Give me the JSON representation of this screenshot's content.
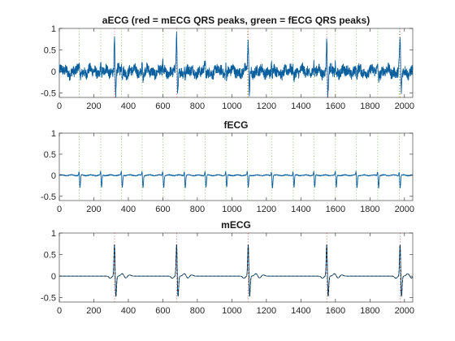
{
  "figure": {
    "background": "#ffffff"
  },
  "chart_data": [
    {
      "type": "line",
      "title": "aECG (red = mECG QRS peaks, green = fECG QRS peaks)",
      "xlim": [
        0,
        2048
      ],
      "ylim": [
        -0.6,
        1
      ],
      "xticks": [
        0,
        200,
        400,
        600,
        800,
        1000,
        1200,
        1400,
        1600,
        1800,
        2000
      ],
      "yticks": [
        -0.5,
        0,
        0.5,
        1
      ],
      "ytick_labels": [
        "-0.5",
        "0",
        "0.5",
        "1"
      ],
      "grid": false,
      "line_color": "#0a5f9e",
      "mecg_peaks": [
        320,
        680,
        1095,
        1550,
        1975
      ],
      "mecg_peak_color": "#d9534f",
      "fecg_peaks": [
        115,
        240,
        360,
        480,
        600,
        725,
        845,
        965,
        1090,
        1230,
        1355,
        1475,
        1600,
        1720,
        1845,
        1970
      ],
      "fecg_peak_color": "#7ab648",
      "noise_amplitude": 0.12,
      "mecg_peak_amplitude": 0.85,
      "fecg_peak_amplitude": 0.18
    },
    {
      "type": "line",
      "title": "fECG",
      "xlim": [
        0,
        2048
      ],
      "ylim": [
        -0.6,
        1
      ],
      "xticks": [
        0,
        200,
        400,
        600,
        800,
        1000,
        1200,
        1400,
        1600,
        1800,
        2000
      ],
      "yticks": [
        -0.5,
        0,
        0.5,
        1
      ],
      "ytick_labels": [
        "-0.5",
        "0",
        "0.5",
        "1"
      ],
      "grid": false,
      "line_color": "#0a5f9e",
      "fecg_peaks": [
        115,
        240,
        360,
        480,
        600,
        725,
        845,
        965,
        1090,
        1230,
        1355,
        1475,
        1600,
        1720,
        1845,
        1970
      ],
      "fecg_peak_color": "#7ab648",
      "fecg_r_amplitude": 0.12,
      "fecg_s_amplitude": -0.3,
      "noise_amplitude": 0.02
    },
    {
      "type": "line",
      "title": "mECG",
      "xlim": [
        0,
        2048
      ],
      "ylim": [
        -0.6,
        1
      ],
      "xticks": [
        0,
        200,
        400,
        600,
        800,
        1000,
        1200,
        1400,
        1600,
        1800,
        2000
      ],
      "yticks": [
        -0.5,
        0,
        0.5,
        1
      ],
      "ytick_labels": [
        "-0.5",
        "0",
        "0.5",
        "1"
      ],
      "grid": false,
      "line_color": "#0a5f9e",
      "overlay_color": "#1b1b1b",
      "mecg_peaks": [
        320,
        680,
        1095,
        1550,
        1975
      ],
      "mecg_peak_color": "#d9534f",
      "mecg_r_amplitude": 0.82,
      "mecg_s_amplitude": -0.52
    }
  ]
}
